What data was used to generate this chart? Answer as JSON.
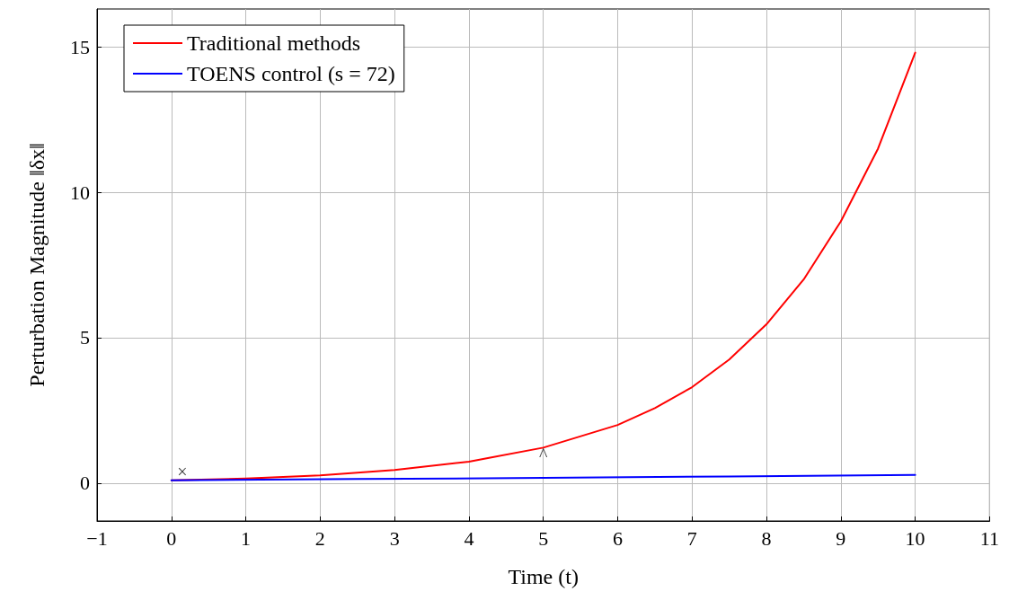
{
  "chart_data": {
    "type": "line",
    "xlabel": "Time (t)",
    "ylabel": "Perturbation Magnitude ‖δx‖",
    "xlim": [
      -1,
      11
    ],
    "xticks": [
      -1,
      0,
      1,
      2,
      3,
      4,
      5,
      6,
      7,
      8,
      9,
      10,
      11
    ],
    "ylim": [
      -1.3,
      16.3
    ],
    "yticks": [
      0,
      5,
      10,
      15
    ],
    "grid": true,
    "legend": "top left",
    "marker": "none",
    "line_style": "solid",
    "series": [
      {
        "name": "Traditional methods",
        "color": "#ff0000",
        "x": [
          0,
          1,
          2,
          3,
          4,
          5,
          6,
          6.5,
          7,
          7.5,
          8,
          8.5,
          9,
          9.5,
          10
        ],
        "values": [
          0.1,
          0.16,
          0.27,
          0.45,
          0.74,
          1.22,
          2.0,
          2.58,
          3.3,
          4.25,
          5.46,
          7.0,
          9.0,
          11.5,
          14.8
        ]
      },
      {
        "name": "TOENS control (s = 72)",
        "color": "#0000ff",
        "x": [
          0,
          2.5,
          5,
          7.5,
          10
        ],
        "values": [
          0.1,
          0.14,
          0.18,
          0.23,
          0.28
        ]
      }
    ],
    "annotations": [
      {
        "text": "×",
        "x": 0,
        "y": 0.1
      },
      {
        "text": "^",
        "x": 5,
        "y": 1.22
      }
    ]
  }
}
